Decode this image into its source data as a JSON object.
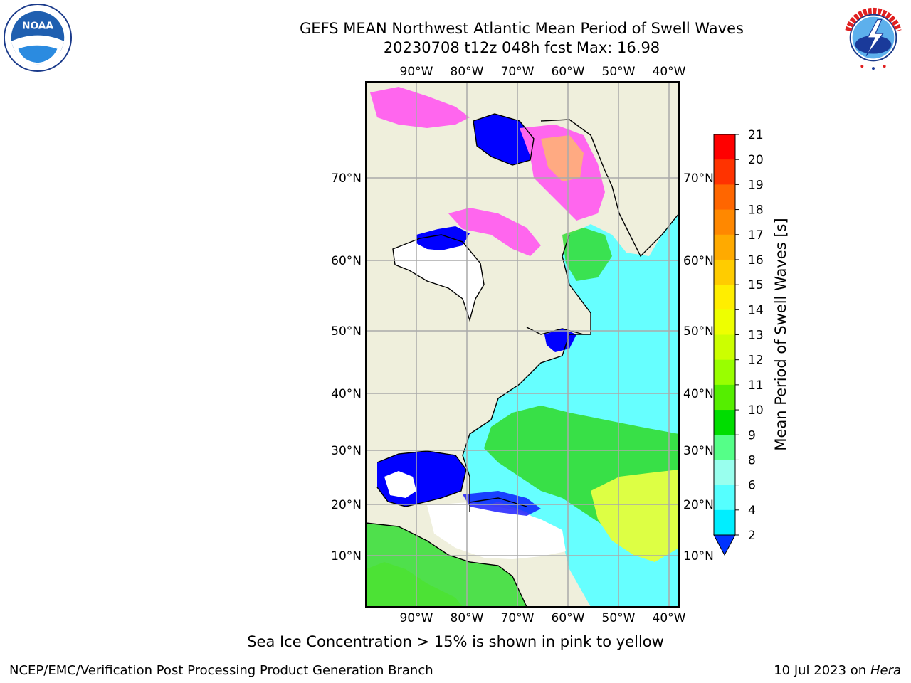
{
  "title_line1": "GEFS MEAN Northwest Atlantic Mean Period of Swell Waves",
  "title_line2": "20230708 t12z 048h fcst   Max: 16.98",
  "logos": {
    "left": "NOAA",
    "right": "NATIONAL WEATHER SERVICE"
  },
  "map": {
    "lon_labels": [
      "90°W",
      "80°W",
      "70°W",
      "60°W",
      "50°W",
      "40°W"
    ],
    "lat_labels": [
      "70°N",
      "60°N",
      "50°N",
      "40°N",
      "30°N",
      "20°N",
      "10°N"
    ],
    "colorbar_label": "Mean Period of Swell Waves [s]",
    "colorbar_ticks": [
      "21",
      "20",
      "19",
      "18",
      "17",
      "16",
      "15",
      "14",
      "13",
      "12",
      "11",
      "10",
      "9",
      "8",
      "6",
      "4",
      "2"
    ],
    "colorbar_colors": [
      "#ff0000",
      "#ff3300",
      "#ff6600",
      "#ff8800",
      "#ffaa00",
      "#ffcc00",
      "#ffee00",
      "#eeff00",
      "#ccff00",
      "#99ff00",
      "#55ee00",
      "#00dd00",
      "#55ff88",
      "#99ffee",
      "#55ffff",
      "#00eeff",
      "#0099ff",
      "#0033ff"
    ],
    "colors": {
      "land": "#efefdc",
      "ocean_blue": "#0000ff",
      "ice_pink": "#ff66ee",
      "cyan": "#66ffff",
      "green": "#33dd33",
      "yellow": "#ddff44"
    }
  },
  "footnote": "Sea Ice Concentration > 15% is shown in pink to yellow",
  "footer_left": "NCEP/EMC/Verification Post Processing Product Generation Branch",
  "footer_right_date": "10 Jul 2023 on ",
  "footer_right_host": "Hera"
}
